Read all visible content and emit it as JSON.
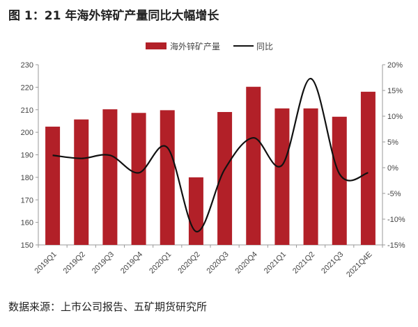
{
  "title": "图 1：21 年海外锌矿产量同比大幅增长",
  "source": "数据来源：上市公司报告、五矿期货研究所",
  "chart_data": {
    "type": "bar",
    "title": "图 1：21 年海外锌矿产量同比大幅增长",
    "categories": [
      "2019Q1",
      "2019Q2",
      "2019Q3",
      "2019Q4",
      "2020Q1",
      "2020Q2",
      "2020Q3",
      "2020Q4",
      "2021Q1",
      "2021Q2",
      "2021Q3",
      "2021Q4E"
    ],
    "series": [
      {
        "name": "海外锌矿产量",
        "type": "bar",
        "axis": "left",
        "color": "#b22028",
        "values": [
          202.5,
          205.7,
          210.2,
          208.6,
          209.8,
          180.0,
          209.0,
          220.2,
          210.6,
          210.6,
          206.9,
          218.0
        ]
      },
      {
        "name": "同比",
        "type": "line",
        "axis": "right",
        "color": "#111111",
        "smooth": true,
        "values": [
          2.4,
          1.8,
          2.4,
          -1.0,
          3.9,
          -12.4,
          -0.3,
          5.8,
          0.5,
          17.3,
          -1.2,
          -1.0
        ]
      }
    ],
    "left_axis": {
      "ylim": [
        150,
        230
      ],
      "ticks": [
        "150",
        "160",
        "170",
        "180",
        "190",
        "200",
        "210",
        "220",
        "230"
      ]
    },
    "right_axis": {
      "ylim": [
        -15,
        20
      ],
      "unit": "%",
      "ticks": [
        "-15%",
        "-10%",
        "-5%",
        "0%",
        "5%",
        "10%",
        "15%",
        "20%"
      ]
    },
    "grid": false,
    "legend": "top-right"
  }
}
